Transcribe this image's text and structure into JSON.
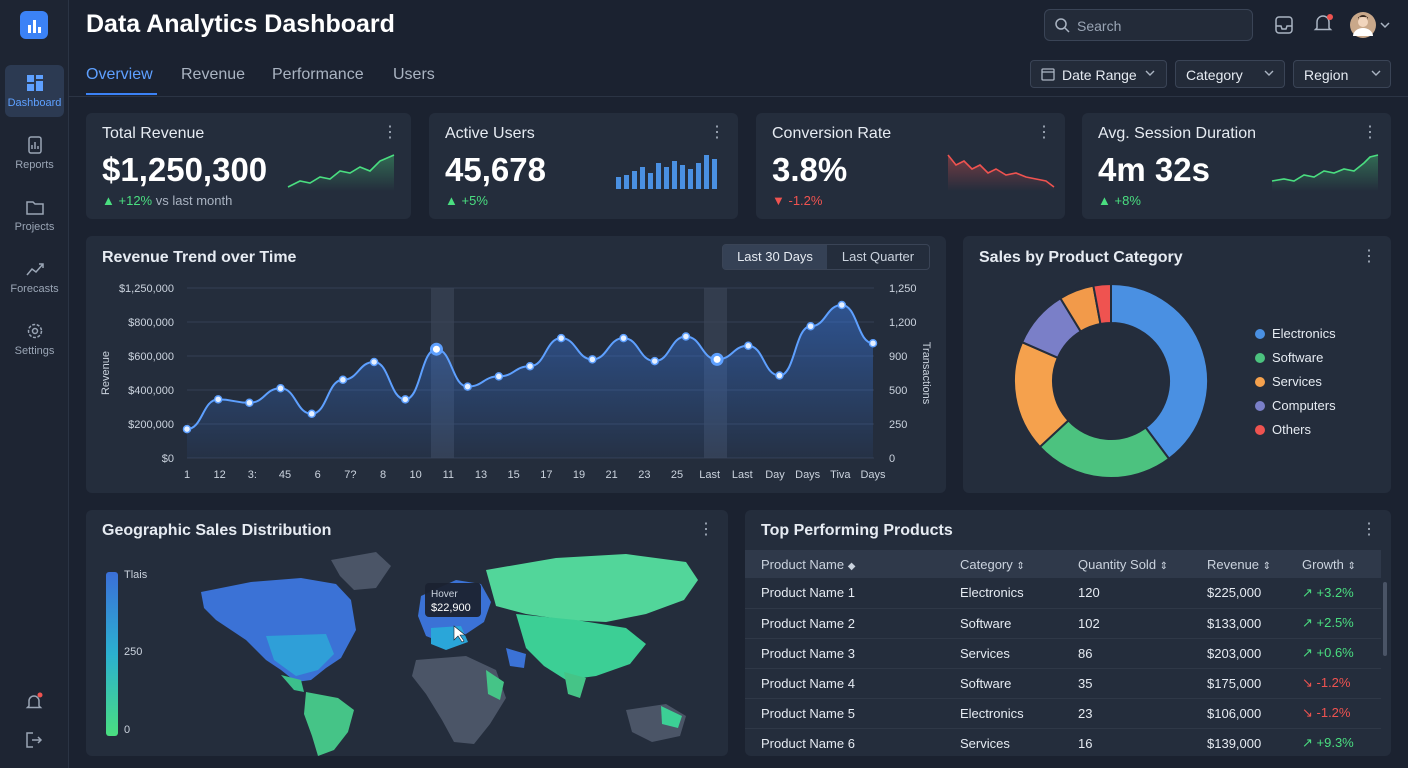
{
  "header": {
    "title": "Data Analytics Dashboard",
    "search_placeholder": "Search"
  },
  "sidebar": {
    "items": [
      {
        "label": "Dashboard",
        "icon": "dashboard-icon",
        "active": true
      },
      {
        "label": "Reports",
        "icon": "reports-icon"
      },
      {
        "label": "Projects",
        "icon": "folder-icon"
      },
      {
        "label": "Forecasts",
        "icon": "forecast-icon"
      },
      {
        "label": "Settings",
        "icon": "gear-icon"
      }
    ]
  },
  "tabs": [
    "Overview",
    "Revenue",
    "Performance",
    "Users"
  ],
  "filters": {
    "date_range": "Date Range",
    "category": "Category",
    "region": "Region"
  },
  "kpis": [
    {
      "title": "Total Revenue",
      "value": "$1,250,300",
      "delta": "+12%",
      "note": "vs last month"
    },
    {
      "title": "Active Users",
      "value": "45,678",
      "delta": "+5%"
    },
    {
      "title": "Conversion Rate",
      "value": "3.8%",
      "delta": "-1.2%"
    },
    {
      "title": "Avg. Session Duration",
      "value": "4m 32s",
      "delta": "+8%"
    }
  ],
  "revenue_chart": {
    "title": "Revenue Trend over Time",
    "toggle": {
      "a": "Last 30 Days",
      "b": "Last Quarter"
    },
    "ylabel": "Revenue",
    "y2label": "Transactions",
    "yticks": [
      "$1,250,000",
      "$800,000",
      "$600,000",
      "$400,000",
      "$200,000",
      "$0"
    ],
    "y2ticks": [
      "1,250",
      "1,200",
      "900",
      "500",
      "250",
      "0"
    ],
    "xticks": [
      "1",
      "12",
      "3:",
      "45",
      "6",
      "7?",
      "8",
      "10",
      "11",
      "13",
      "15",
      "17",
      "19",
      "21",
      "23",
      "25",
      "Last",
      "Last",
      "Day",
      "Days",
      "Tiva",
      "Days"
    ]
  },
  "chart_data": {
    "type": "area",
    "title": "Revenue Trend over Time",
    "ylabel": "Revenue",
    "ylim": [
      0,
      1000000
    ],
    "values": [
      170000,
      345000,
      325000,
      410000,
      260000,
      460000,
      565000,
      345000,
      640000,
      420000,
      480000,
      540000,
      705000,
      580000,
      705000,
      570000,
      715000,
      580000,
      660000,
      485000,
      775000,
      900000,
      675000
    ]
  },
  "pie": {
    "title": "Sales by Product Category",
    "type": "pie",
    "slices": [
      {
        "label": "Electronics",
        "value": 41,
        "color": "#4a90e2"
      },
      {
        "label": "Software",
        "value": 24,
        "color": "#4cc27f"
      },
      {
        "label": "Services",
        "value": 19,
        "color": "#f5a14d"
      },
      {
        "label": "Computers",
        "value": 10,
        "color": "#7a7fc8"
      },
      {
        "label": "",
        "value": 6,
        "color": "#f29a4a"
      },
      {
        "label": "Others",
        "value": 3,
        "color": "#ef5350"
      }
    ],
    "legend": [
      "Electronics",
      "Software",
      "Services",
      "Computers",
      "Others"
    ]
  },
  "geo": {
    "title": "Geographic Sales Distribution",
    "scale": [
      "Tlais",
      "250",
      "0"
    ],
    "tooltip": {
      "label": "Hover",
      "value": "$22,900"
    }
  },
  "products": {
    "title": "Top Performing Products",
    "columns": [
      "Product Name",
      "Category",
      "Quantity Sold",
      "Revenue",
      "Growth"
    ],
    "rows": [
      [
        "Product Name 1",
        "Electronics",
        "120",
        "$225,000",
        "+3.2%"
      ],
      [
        "Product Name 2",
        "Software",
        "102",
        "$133,000",
        "+2.5%"
      ],
      [
        "Product Name 3",
        "Services",
        "86",
        "$203,000",
        "+0.6%"
      ],
      [
        "Product Name 4",
        "Software",
        "35",
        "$175,000",
        "-1.2%"
      ],
      [
        "Product Name 5",
        "Electronics",
        "23",
        "$106,000",
        "-1.2%"
      ],
      [
        "Product Name 6",
        "Services",
        "16",
        "$139,000",
        "+9.3%"
      ]
    ]
  }
}
